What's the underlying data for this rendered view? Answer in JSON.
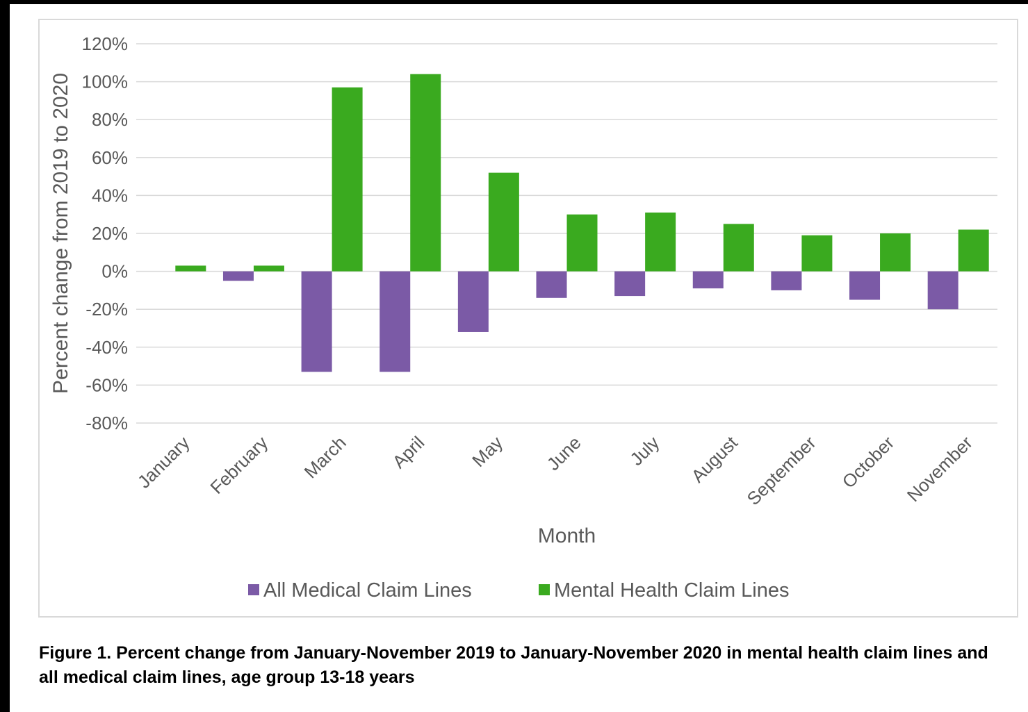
{
  "chart_data": {
    "type": "bar",
    "title": "",
    "xlabel": "Month",
    "ylabel": "Percent change from 2019 to 2020",
    "categories": [
      "January",
      "February",
      "March",
      "April",
      "May",
      "June",
      "July",
      "August",
      "September",
      "October",
      "November"
    ],
    "series": [
      {
        "name": "All Medical Claim Lines",
        "color": "#7b5aa6",
        "values": [
          0,
          -5,
          -53,
          -53,
          -32,
          -14,
          -13,
          -9,
          -10,
          -15,
          -20
        ]
      },
      {
        "name": "Mental Health Claim Lines",
        "color": "#3aaa1f",
        "values": [
          3,
          3,
          97,
          104,
          52,
          30,
          31,
          25,
          19,
          20,
          22
        ]
      }
    ],
    "ylim": [
      -80,
      120
    ],
    "yticks": [
      120,
      100,
      80,
      60,
      40,
      20,
      0,
      -20,
      -40,
      -60,
      -80
    ],
    "ytick_labels": [
      "120%",
      "100%",
      "80%",
      "60%",
      "40%",
      "20%",
      "0%",
      "-20%",
      "-40%",
      "-60%",
      "-80%"
    ],
    "grid": true,
    "legend_position": "bottom"
  },
  "caption": "Figure 1. Percent change from January-November 2019 to January-November 2020 in mental health claim lines and all medical claim lines, age group 13-18 years"
}
